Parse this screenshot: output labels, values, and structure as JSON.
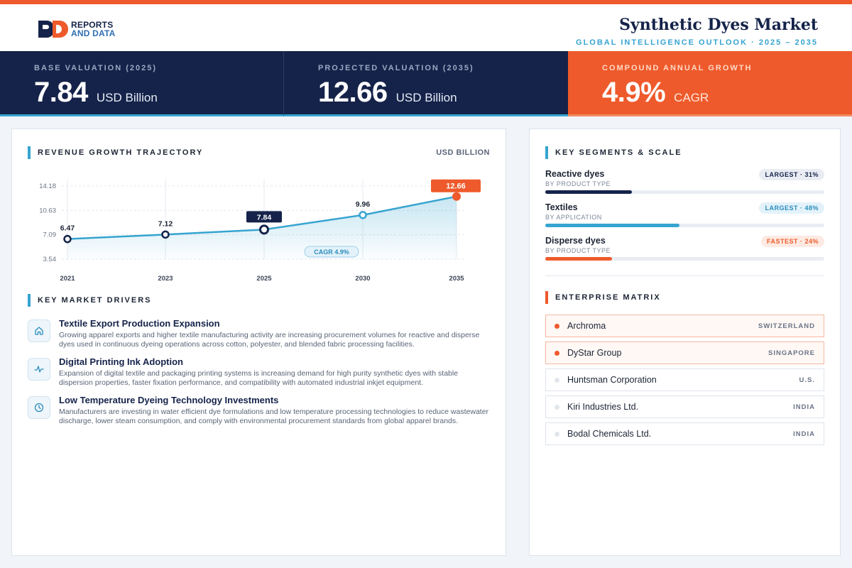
{
  "header": {
    "logo_line1": "REPORTS",
    "logo_line2": "AND DATA",
    "title": "Synthetic Dyes Market",
    "subtitle": "GLOBAL INTELLIGENCE OUTLOOK  ·  2025 – 2035"
  },
  "kpis": [
    {
      "label": "BASE VALUATION (2025)",
      "value": "7.84",
      "unit": "USD Billion"
    },
    {
      "label": "PROJECTED VALUATION (2035)",
      "value": "12.66",
      "unit": "USD Billion"
    },
    {
      "label": "COMPOUND ANNUAL GROWTH",
      "value": "4.9%",
      "unit": "CAGR"
    }
  ],
  "trajectory": {
    "heading": "REVENUE GROWTH TRAJECTORY",
    "unit": "USD BILLION",
    "cagr_label": "CAGR 4.9%"
  },
  "chart_data": {
    "type": "line",
    "x": [
      "2021",
      "2023",
      "2025",
      "2030",
      "2035"
    ],
    "values": [
      6.47,
      7.12,
      7.84,
      9.96,
      12.66
    ],
    "yticks": [
      3.54,
      7.09,
      10.63,
      14.18
    ],
    "ylim": [
      3.54,
      14.18
    ],
    "data_labels": [
      "6.47",
      "7.12",
      "7.84",
      "9.96",
      "12.66"
    ],
    "highlight": {
      "2025": "dark",
      "2035": "orange"
    },
    "grid": true
  },
  "drivers": {
    "heading": "KEY MARKET DRIVERS",
    "items": [
      {
        "icon": "home-icon",
        "title": "Textile Export Production Expansion",
        "desc": "Growing apparel exports and higher textile manufacturing activity are increasing procurement volumes for reactive and disperse dyes used in continuous dyeing operations across cotton, polyester, and blended fabric processing facilities."
      },
      {
        "icon": "activity-icon",
        "title": "Digital Printing Ink Adoption",
        "desc": "Expansion of digital textile and packaging printing systems is increasing demand for high purity synthetic dyes with stable dispersion properties, faster fixation performance, and compatibility with automated industrial inkjet equipment."
      },
      {
        "icon": "clock-icon",
        "title": "Low Temperature Dyeing Technology Investments",
        "desc": "Manufacturers are investing in water efficient dye formulations and low temperature processing technologies to reduce wastewater discharge, lower steam consumption, and comply with environmental procurement standards from global apparel brands."
      }
    ]
  },
  "segments": {
    "heading": "KEY SEGMENTS & SCALE",
    "items": [
      {
        "name": "Reactive dyes",
        "sub": "BY PRODUCT TYPE",
        "badge": "LARGEST · 31%",
        "share": 31,
        "color": "#15234a",
        "badge_bg": "#e9edf3",
        "badge_fg": "#15234a"
      },
      {
        "name": "Textiles",
        "sub": "BY APPLICATION",
        "badge": "LARGEST · 48%",
        "share": 48,
        "color": "#36a4d0",
        "badge_bg": "#e3f2fa",
        "badge_fg": "#2a8cbd"
      },
      {
        "name": "Disperse dyes",
        "sub": "BY PRODUCT TYPE",
        "badge": "FASTEST · 24%",
        "share": 24,
        "color": "#ee5a2b",
        "badge_bg": "#fdeae2",
        "badge_fg": "#ee5a2b"
      }
    ]
  },
  "matrix": {
    "heading": "ENTERPRISE MATRIX",
    "items": [
      {
        "name": "Archroma",
        "country": "SWITZERLAND",
        "highlight": true
      },
      {
        "name": "DyStar Group",
        "country": "SINGAPORE",
        "highlight": true
      },
      {
        "name": "Huntsman Corporation",
        "country": "U.S.",
        "highlight": false
      },
      {
        "name": "Kiri Industries Ltd.",
        "country": "INDIA",
        "highlight": false
      },
      {
        "name": "Bodal Chemicals Ltd.",
        "country": "INDIA",
        "highlight": false
      }
    ]
  },
  "colors": {
    "accent_orange": "#ee5a2b",
    "accent_blue": "#36a4d0",
    "navy": "#15234a"
  }
}
